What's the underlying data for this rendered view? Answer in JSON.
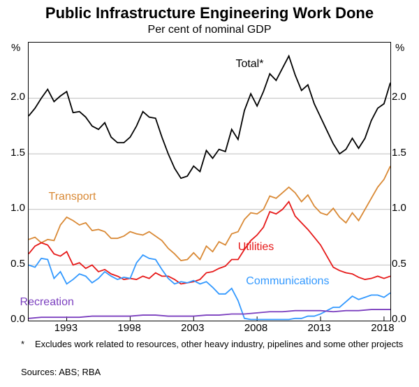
{
  "title": "Public Infrastructure Engineering Work Done",
  "subtitle": "Per cent of nominal GDP",
  "y_unit_left": "%",
  "y_unit_right": "%",
  "ylim": [
    0.0,
    2.5
  ],
  "yticks": [
    0.0,
    0.5,
    1.0,
    1.5,
    2.0
  ],
  "xlim": [
    1990,
    2018.5
  ],
  "xticks": [
    1993,
    1998,
    2003,
    2008,
    2013,
    2018
  ],
  "grid_color": "#bfbfbf",
  "background_color": "#ffffff",
  "series": {
    "total": {
      "label": "Total*",
      "color": "#000000",
      "stroke_width": 1.8,
      "label_pos": {
        "year": 2007.5,
        "val": 2.3
      },
      "points": [
        [
          1990.0,
          1.84
        ],
        [
          1990.5,
          1.91
        ],
        [
          1991.0,
          2.0
        ],
        [
          1991.5,
          2.08
        ],
        [
          1992.0,
          1.97
        ],
        [
          1992.5,
          2.02
        ],
        [
          1993.0,
          2.06
        ],
        [
          1993.5,
          1.87
        ],
        [
          1994.0,
          1.88
        ],
        [
          1994.5,
          1.83
        ],
        [
          1995.0,
          1.75
        ],
        [
          1995.5,
          1.72
        ],
        [
          1996.0,
          1.78
        ],
        [
          1996.5,
          1.65
        ],
        [
          1997.0,
          1.6
        ],
        [
          1997.5,
          1.6
        ],
        [
          1998.0,
          1.65
        ],
        [
          1998.5,
          1.75
        ],
        [
          1999.0,
          1.88
        ],
        [
          1999.5,
          1.83
        ],
        [
          2000.0,
          1.82
        ],
        [
          2000.5,
          1.65
        ],
        [
          2001.0,
          1.5
        ],
        [
          2001.5,
          1.37
        ],
        [
          2002.0,
          1.28
        ],
        [
          2002.5,
          1.3
        ],
        [
          2003.0,
          1.39
        ],
        [
          2003.5,
          1.34
        ],
        [
          2004.0,
          1.53
        ],
        [
          2004.5,
          1.46
        ],
        [
          2005.0,
          1.54
        ],
        [
          2005.5,
          1.52
        ],
        [
          2006.0,
          1.72
        ],
        [
          2006.5,
          1.63
        ],
        [
          2007.0,
          1.89
        ],
        [
          2007.5,
          2.04
        ],
        [
          2008.0,
          1.93
        ],
        [
          2008.5,
          2.06
        ],
        [
          2009.0,
          2.22
        ],
        [
          2009.5,
          2.16
        ],
        [
          2010.0,
          2.27
        ],
        [
          2010.5,
          2.38
        ],
        [
          2011.0,
          2.21
        ],
        [
          2011.5,
          2.07
        ],
        [
          2012.0,
          2.12
        ],
        [
          2012.5,
          1.95
        ],
        [
          2013.0,
          1.83
        ],
        [
          2013.5,
          1.71
        ],
        [
          2014.0,
          1.59
        ],
        [
          2014.5,
          1.5
        ],
        [
          2015.0,
          1.54
        ],
        [
          2015.5,
          1.64
        ],
        [
          2016.0,
          1.55
        ],
        [
          2016.5,
          1.64
        ],
        [
          2017.0,
          1.8
        ],
        [
          2017.5,
          1.91
        ],
        [
          2018.0,
          1.95
        ],
        [
          2018.5,
          2.14
        ]
      ]
    },
    "transport": {
      "label": "Transport",
      "color": "#d98935",
      "stroke_width": 1.8,
      "label_pos": {
        "year": 1993.5,
        "val": 1.1
      },
      "points": [
        [
          1990.0,
          0.73
        ],
        [
          1990.5,
          0.75
        ],
        [
          1991.0,
          0.7
        ],
        [
          1991.5,
          0.73
        ],
        [
          1992.0,
          0.72
        ],
        [
          1992.5,
          0.86
        ],
        [
          1993.0,
          0.93
        ],
        [
          1993.5,
          0.9
        ],
        [
          1994.0,
          0.86
        ],
        [
          1994.5,
          0.88
        ],
        [
          1995.0,
          0.81
        ],
        [
          1995.5,
          0.82
        ],
        [
          1996.0,
          0.8
        ],
        [
          1996.5,
          0.74
        ],
        [
          1997.0,
          0.74
        ],
        [
          1997.5,
          0.76
        ],
        [
          1998.0,
          0.8
        ],
        [
          1998.5,
          0.78
        ],
        [
          1999.0,
          0.77
        ],
        [
          1999.5,
          0.8
        ],
        [
          2000.0,
          0.76
        ],
        [
          2000.5,
          0.72
        ],
        [
          2001.0,
          0.65
        ],
        [
          2001.5,
          0.6
        ],
        [
          2002.0,
          0.54
        ],
        [
          2002.5,
          0.55
        ],
        [
          2003.0,
          0.61
        ],
        [
          2003.5,
          0.55
        ],
        [
          2004.0,
          0.67
        ],
        [
          2004.5,
          0.62
        ],
        [
          2005.0,
          0.71
        ],
        [
          2005.5,
          0.68
        ],
        [
          2006.0,
          0.78
        ],
        [
          2006.5,
          0.8
        ],
        [
          2007.0,
          0.91
        ],
        [
          2007.5,
          0.97
        ],
        [
          2008.0,
          0.96
        ],
        [
          2008.5,
          1.0
        ],
        [
          2009.0,
          1.12
        ],
        [
          2009.5,
          1.1
        ],
        [
          2010.0,
          1.15
        ],
        [
          2010.5,
          1.2
        ],
        [
          2011.0,
          1.15
        ],
        [
          2011.5,
          1.07
        ],
        [
          2012.0,
          1.13
        ],
        [
          2012.5,
          1.03
        ],
        [
          2013.0,
          0.97
        ],
        [
          2013.5,
          0.95
        ],
        [
          2014.0,
          1.01
        ],
        [
          2014.5,
          0.93
        ],
        [
          2015.0,
          0.88
        ],
        [
          2015.5,
          0.97
        ],
        [
          2016.0,
          0.9
        ],
        [
          2016.5,
          1.0
        ],
        [
          2017.0,
          1.1
        ],
        [
          2017.5,
          1.2
        ],
        [
          2018.0,
          1.27
        ],
        [
          2018.5,
          1.39
        ]
      ]
    },
    "utilities": {
      "label": "Utilities",
      "color": "#e61919",
      "stroke_width": 1.8,
      "label_pos": {
        "year": 2008.0,
        "val": 0.65
      },
      "points": [
        [
          1990.0,
          0.6
        ],
        [
          1990.5,
          0.67
        ],
        [
          1991.0,
          0.7
        ],
        [
          1991.5,
          0.68
        ],
        [
          1992.0,
          0.6
        ],
        [
          1992.5,
          0.58
        ],
        [
          1993.0,
          0.62
        ],
        [
          1993.5,
          0.5
        ],
        [
          1994.0,
          0.52
        ],
        [
          1994.5,
          0.47
        ],
        [
          1995.0,
          0.5
        ],
        [
          1995.5,
          0.44
        ],
        [
          1996.0,
          0.46
        ],
        [
          1996.5,
          0.42
        ],
        [
          1997.0,
          0.4
        ],
        [
          1997.5,
          0.37
        ],
        [
          1998.0,
          0.38
        ],
        [
          1998.5,
          0.37
        ],
        [
          1999.0,
          0.4
        ],
        [
          1999.5,
          0.38
        ],
        [
          2000.0,
          0.43
        ],
        [
          2000.5,
          0.4
        ],
        [
          2001.0,
          0.4
        ],
        [
          2001.5,
          0.37
        ],
        [
          2002.0,
          0.33
        ],
        [
          2002.5,
          0.34
        ],
        [
          2003.0,
          0.35
        ],
        [
          2003.5,
          0.37
        ],
        [
          2004.0,
          0.43
        ],
        [
          2004.5,
          0.44
        ],
        [
          2005.0,
          0.47
        ],
        [
          2005.5,
          0.49
        ],
        [
          2006.0,
          0.55
        ],
        [
          2006.5,
          0.55
        ],
        [
          2007.0,
          0.64
        ],
        [
          2007.5,
          0.72
        ],
        [
          2008.0,
          0.77
        ],
        [
          2008.5,
          0.84
        ],
        [
          2009.0,
          0.98
        ],
        [
          2009.5,
          0.96
        ],
        [
          2010.0,
          1.0
        ],
        [
          2010.5,
          1.07
        ],
        [
          2011.0,
          0.94
        ],
        [
          2011.5,
          0.88
        ],
        [
          2012.0,
          0.82
        ],
        [
          2012.5,
          0.75
        ],
        [
          2013.0,
          0.68
        ],
        [
          2013.5,
          0.58
        ],
        [
          2014.0,
          0.48
        ],
        [
          2014.5,
          0.45
        ],
        [
          2015.0,
          0.43
        ],
        [
          2015.5,
          0.42
        ],
        [
          2016.0,
          0.39
        ],
        [
          2016.5,
          0.37
        ],
        [
          2017.0,
          0.38
        ],
        [
          2017.5,
          0.4
        ],
        [
          2018.0,
          0.38
        ],
        [
          2018.5,
          0.4
        ]
      ]
    },
    "communications": {
      "label": "Communications",
      "color": "#3399ff",
      "stroke_width": 1.8,
      "label_pos": {
        "year": 2010.5,
        "val": 0.34
      },
      "points": [
        [
          1990.0,
          0.5
        ],
        [
          1990.5,
          0.48
        ],
        [
          1991.0,
          0.56
        ],
        [
          1991.5,
          0.55
        ],
        [
          1992.0,
          0.38
        ],
        [
          1992.5,
          0.44
        ],
        [
          1993.0,
          0.33
        ],
        [
          1993.5,
          0.37
        ],
        [
          1994.0,
          0.42
        ],
        [
          1994.5,
          0.4
        ],
        [
          1995.0,
          0.34
        ],
        [
          1995.5,
          0.38
        ],
        [
          1996.0,
          0.44
        ],
        [
          1996.5,
          0.4
        ],
        [
          1997.0,
          0.37
        ],
        [
          1997.5,
          0.39
        ],
        [
          1998.0,
          0.38
        ],
        [
          1998.5,
          0.52
        ],
        [
          1999.0,
          0.59
        ],
        [
          1999.5,
          0.56
        ],
        [
          2000.0,
          0.55
        ],
        [
          2000.5,
          0.46
        ],
        [
          2001.0,
          0.38
        ],
        [
          2001.5,
          0.33
        ],
        [
          2002.0,
          0.35
        ],
        [
          2002.5,
          0.34
        ],
        [
          2003.0,
          0.36
        ],
        [
          2003.5,
          0.33
        ],
        [
          2004.0,
          0.35
        ],
        [
          2004.5,
          0.3
        ],
        [
          2005.0,
          0.24
        ],
        [
          2005.5,
          0.24
        ],
        [
          2006.0,
          0.29
        ],
        [
          2006.5,
          0.18
        ],
        [
          2007.0,
          0.02
        ],
        [
          2007.5,
          0.01
        ],
        [
          2008.0,
          0.01
        ],
        [
          2008.5,
          0.01
        ],
        [
          2009.0,
          0.01
        ],
        [
          2009.5,
          0.01
        ],
        [
          2010.0,
          0.01
        ],
        [
          2010.5,
          0.01
        ],
        [
          2011.0,
          0.02
        ],
        [
          2011.5,
          0.02
        ],
        [
          2012.0,
          0.04
        ],
        [
          2012.5,
          0.04
        ],
        [
          2013.0,
          0.06
        ],
        [
          2013.5,
          0.09
        ],
        [
          2014.0,
          0.12
        ],
        [
          2014.5,
          0.12
        ],
        [
          2015.0,
          0.17
        ],
        [
          2015.5,
          0.22
        ],
        [
          2016.0,
          0.19
        ],
        [
          2016.5,
          0.21
        ],
        [
          2017.0,
          0.23
        ],
        [
          2017.5,
          0.23
        ],
        [
          2018.0,
          0.21
        ],
        [
          2018.5,
          0.25
        ]
      ]
    },
    "recreation": {
      "label": "Recreation",
      "color": "#7b3fbf",
      "stroke_width": 1.8,
      "label_pos": {
        "year": 1991.5,
        "val": 0.15
      },
      "points": [
        [
          1990.0,
          0.02
        ],
        [
          1991.0,
          0.03
        ],
        [
          1992.0,
          0.03
        ],
        [
          1993.0,
          0.03
        ],
        [
          1994.0,
          0.03
        ],
        [
          1995.0,
          0.04
        ],
        [
          1996.0,
          0.04
        ],
        [
          1997.0,
          0.04
        ],
        [
          1998.0,
          0.04
        ],
        [
          1999.0,
          0.05
        ],
        [
          2000.0,
          0.05
        ],
        [
          2001.0,
          0.04
        ],
        [
          2002.0,
          0.04
        ],
        [
          2003.0,
          0.04
        ],
        [
          2004.0,
          0.05
        ],
        [
          2005.0,
          0.05
        ],
        [
          2006.0,
          0.06
        ],
        [
          2007.0,
          0.06
        ],
        [
          2008.0,
          0.07
        ],
        [
          2009.0,
          0.08
        ],
        [
          2010.0,
          0.08
        ],
        [
          2011.0,
          0.09
        ],
        [
          2012.0,
          0.09
        ],
        [
          2013.0,
          0.09
        ],
        [
          2014.0,
          0.08
        ],
        [
          2015.0,
          0.09
        ],
        [
          2016.0,
          0.09
        ],
        [
          2017.0,
          0.1
        ],
        [
          2018.0,
          0.1
        ],
        [
          2018.5,
          0.1
        ]
      ]
    }
  },
  "footnote_marker": "*",
  "footnote_text": "Excludes work related to resources, other heavy industry, pipelines and some other projects",
  "sources_label": "Sources:",
  "sources_text": "ABS; RBA"
}
